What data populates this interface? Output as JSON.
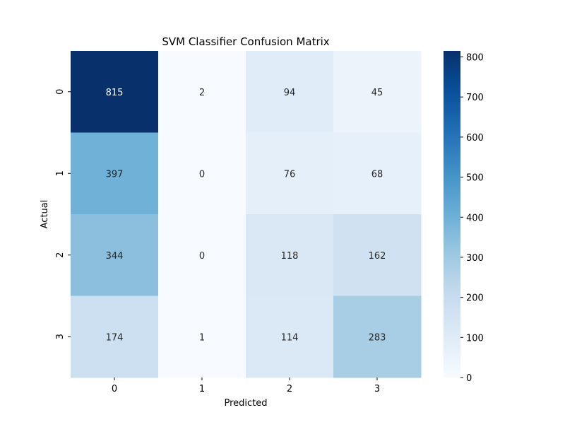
{
  "chart_data": {
    "type": "heatmap",
    "title": "SVM Classifier Confusion Matrix",
    "xlabel": "Predicted",
    "ylabel": "Actual",
    "x_categories": [
      "0",
      "1",
      "2",
      "3"
    ],
    "y_categories": [
      "0",
      "1",
      "2",
      "3"
    ],
    "values": [
      [
        815,
        2,
        94,
        45
      ],
      [
        397,
        0,
        76,
        68
      ],
      [
        344,
        0,
        118,
        162
      ],
      [
        174,
        1,
        114,
        283
      ]
    ],
    "colormap": "Blues",
    "color_range": [
      0,
      815
    ],
    "colorbar_ticks": [
      0,
      100,
      200,
      300,
      400,
      500,
      600,
      700,
      800
    ],
    "grid": false,
    "legend": "colorbar-right"
  }
}
